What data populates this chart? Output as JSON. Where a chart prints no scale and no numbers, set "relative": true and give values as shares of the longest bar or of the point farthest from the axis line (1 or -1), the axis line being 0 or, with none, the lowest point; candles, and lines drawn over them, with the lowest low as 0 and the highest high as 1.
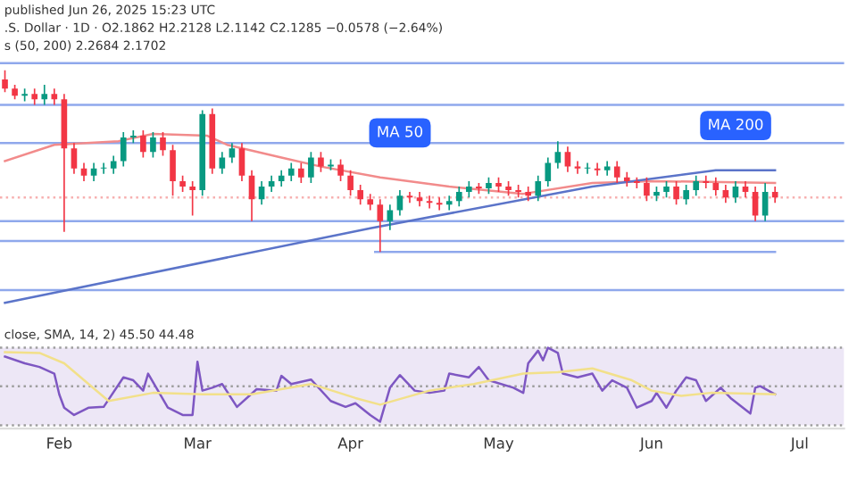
{
  "chart_data": [
    {
      "type": "candlestick",
      "relative": true,
      "tick_labels": false,
      "xlim": [
        "2025-01-20",
        "2025-07-10"
      ],
      "annotations": [
        "published Jun 26, 2025 15:23 UTC",
        ".S. Dollar · 1D · O2.1862 H2.2128 L2.1142 C2.1285 −0.0578 (−2.64%)",
        "s (50, 200) 2.2684 2.1702",
        {
          "text": "MA 50",
          "x": "2025-04-07",
          "y": 0.41
        },
        {
          "text": "MA 200",
          "x": "2025-06-14",
          "y": 0.45
        }
      ],
      "x": [
        "2025-01-21",
        "2025-01-23",
        "2025-01-25",
        "2025-01-27",
        "2025-01-29",
        "2025-01-31",
        "2025-02-02",
        "2025-02-04",
        "2025-02-06",
        "2025-02-08",
        "2025-02-10",
        "2025-02-12",
        "2025-02-14",
        "2025-02-16",
        "2025-02-18",
        "2025-02-20",
        "2025-02-22",
        "2025-02-24",
        "2025-02-26",
        "2025-02-28",
        "2025-03-02",
        "2025-03-04",
        "2025-03-06",
        "2025-03-08",
        "2025-03-10",
        "2025-03-12",
        "2025-03-14",
        "2025-03-16",
        "2025-03-18",
        "2025-03-20",
        "2025-03-22",
        "2025-03-24",
        "2025-03-26",
        "2025-03-28",
        "2025-03-30",
        "2025-04-01",
        "2025-04-03",
        "2025-04-05",
        "2025-04-07",
        "2025-04-09",
        "2025-04-11",
        "2025-04-13",
        "2025-04-15",
        "2025-04-17",
        "2025-04-19",
        "2025-04-21",
        "2025-04-23",
        "2025-04-25",
        "2025-04-27",
        "2025-04-29",
        "2025-05-01",
        "2025-05-03",
        "2025-05-05",
        "2025-05-07",
        "2025-05-09",
        "2025-05-11",
        "2025-05-13",
        "2025-05-15",
        "2025-05-17",
        "2025-05-19",
        "2025-05-21",
        "2025-05-23",
        "2025-05-25",
        "2025-05-27",
        "2025-05-29",
        "2025-05-31",
        "2025-06-02",
        "2025-06-04",
        "2025-06-06",
        "2025-06-08",
        "2025-06-10",
        "2025-06-12",
        "2025-06-14",
        "2025-06-16",
        "2025-06-18",
        "2025-06-20",
        "2025-06-22",
        "2025-06-24",
        "2025-06-26"
      ],
      "ohlc": [
        [
          0.95,
          1.0,
          0.88,
          0.9
        ],
        [
          0.9,
          0.92,
          0.84,
          0.86
        ],
        [
          0.86,
          0.9,
          0.83,
          0.87
        ],
        [
          0.87,
          0.9,
          0.81,
          0.84
        ],
        [
          0.84,
          0.92,
          0.81,
          0.87
        ],
        [
          0.87,
          0.9,
          0.81,
          0.84
        ],
        [
          0.84,
          0.87,
          0.11,
          0.57
        ],
        [
          0.57,
          0.6,
          0.43,
          0.46
        ],
        [
          0.46,
          0.49,
          0.39,
          0.42
        ],
        [
          0.42,
          0.49,
          0.39,
          0.46
        ],
        [
          0.46,
          0.49,
          0.43,
          0.46
        ],
        [
          0.46,
          0.53,
          0.43,
          0.5
        ],
        [
          0.5,
          0.66,
          0.47,
          0.63
        ],
        [
          0.63,
          0.67,
          0.6,
          0.64
        ],
        [
          0.64,
          0.67,
          0.52,
          0.55
        ],
        [
          0.55,
          0.66,
          0.52,
          0.63
        ],
        [
          0.63,
          0.66,
          0.53,
          0.56
        ],
        [
          0.56,
          0.59,
          0.31,
          0.39
        ],
        [
          0.39,
          0.42,
          0.33,
          0.36
        ],
        [
          0.36,
          0.39,
          0.2,
          0.34
        ],
        [
          0.34,
          0.78,
          0.31,
          0.76
        ],
        [
          0.76,
          0.79,
          0.43,
          0.46
        ],
        [
          0.46,
          0.55,
          0.43,
          0.52
        ],
        [
          0.52,
          0.6,
          0.49,
          0.57
        ],
        [
          0.57,
          0.6,
          0.39,
          0.42
        ],
        [
          0.42,
          0.45,
          0.17,
          0.29
        ],
        [
          0.29,
          0.39,
          0.26,
          0.36
        ],
        [
          0.36,
          0.42,
          0.33,
          0.39
        ],
        [
          0.39,
          0.45,
          0.36,
          0.42
        ],
        [
          0.42,
          0.49,
          0.39,
          0.46
        ],
        [
          0.46,
          0.49,
          0.38,
          0.41
        ],
        [
          0.41,
          0.55,
          0.38,
          0.52
        ],
        [
          0.52,
          0.55,
          0.44,
          0.47
        ],
        [
          0.47,
          0.51,
          0.45,
          0.48
        ],
        [
          0.48,
          0.51,
          0.39,
          0.42
        ],
        [
          0.42,
          0.45,
          0.31,
          0.34
        ],
        [
          0.34,
          0.37,
          0.26,
          0.29
        ],
        [
          0.29,
          0.32,
          0.23,
          0.26
        ],
        [
          0.26,
          0.29,
          0.0,
          0.17
        ],
        [
          0.17,
          0.26,
          0.12,
          0.23
        ],
        [
          0.23,
          0.34,
          0.2,
          0.31
        ],
        [
          0.31,
          0.33,
          0.27,
          0.3
        ],
        [
          0.3,
          0.33,
          0.25,
          0.28
        ],
        [
          0.28,
          0.31,
          0.24,
          0.27
        ],
        [
          0.27,
          0.3,
          0.23,
          0.26
        ],
        [
          0.26,
          0.31,
          0.23,
          0.28
        ],
        [
          0.28,
          0.36,
          0.25,
          0.33
        ],
        [
          0.33,
          0.39,
          0.3,
          0.36
        ],
        [
          0.36,
          0.38,
          0.32,
          0.35
        ],
        [
          0.35,
          0.41,
          0.32,
          0.38
        ],
        [
          0.38,
          0.41,
          0.33,
          0.36
        ],
        [
          0.36,
          0.39,
          0.31,
          0.34
        ],
        [
          0.34,
          0.37,
          0.3,
          0.33
        ],
        [
          0.33,
          0.36,
          0.28,
          0.31
        ],
        [
          0.31,
          0.42,
          0.28,
          0.39
        ],
        [
          0.39,
          0.52,
          0.36,
          0.49
        ],
        [
          0.49,
          0.61,
          0.46,
          0.55
        ],
        [
          0.55,
          0.58,
          0.44,
          0.47
        ],
        [
          0.47,
          0.5,
          0.43,
          0.46
        ],
        [
          0.46,
          0.49,
          0.43,
          0.46
        ],
        [
          0.46,
          0.49,
          0.42,
          0.45
        ],
        [
          0.45,
          0.5,
          0.42,
          0.47
        ],
        [
          0.47,
          0.5,
          0.38,
          0.41
        ],
        [
          0.41,
          0.44,
          0.36,
          0.39
        ],
        [
          0.39,
          0.41,
          0.35,
          0.38
        ],
        [
          0.38,
          0.41,
          0.28,
          0.31
        ],
        [
          0.31,
          0.36,
          0.28,
          0.33
        ],
        [
          0.33,
          0.39,
          0.3,
          0.36
        ],
        [
          0.36,
          0.39,
          0.26,
          0.29
        ],
        [
          0.29,
          0.37,
          0.26,
          0.34
        ],
        [
          0.34,
          0.42,
          0.31,
          0.39
        ],
        [
          0.39,
          0.42,
          0.35,
          0.38
        ],
        [
          0.38,
          0.41,
          0.31,
          0.34
        ],
        [
          0.34,
          0.37,
          0.27,
          0.3
        ],
        [
          0.3,
          0.39,
          0.27,
          0.36
        ],
        [
          0.36,
          0.39,
          0.3,
          0.33
        ],
        [
          0.33,
          0.36,
          0.17,
          0.2
        ],
        [
          0.2,
          0.38,
          0.17,
          0.33
        ],
        [
          0.33,
          0.36,
          0.27,
          0.3
        ]
      ],
      "series": [
        {
          "type": "line",
          "color": "#f28b8b",
          "x": [
            "2025-01-21",
            "2025-01-31",
            "2025-02-13",
            "2025-02-20",
            "2025-03-03",
            "2025-03-07",
            "2025-03-18",
            "2025-03-26",
            "2025-04-07",
            "2025-04-21",
            "2025-05-06",
            "2025-05-20",
            "2025-06-01",
            "2025-06-26"
          ],
          "values": [
            0.5,
            0.59,
            0.61,
            0.65,
            0.64,
            0.59,
            0.52,
            0.47,
            0.41,
            0.36,
            0.32,
            0.38,
            0.39,
            0.38
          ]
        },
        {
          "type": "line",
          "color": "#5b74c9",
          "x": [
            "2025-01-21",
            "2025-04-05",
            "2025-05-20",
            "2025-06-14",
            "2025-06-26"
          ],
          "values": [
            -0.28,
            0.13,
            0.36,
            0.45,
            0.45
          ]
        },
        {
          "type": "line",
          "color": "#8fa8ec",
          "x": [
            "2025-04-06",
            "2025-06-26"
          ],
          "values": [
            0.0,
            0.0
          ]
        }
      ],
      "ref_lines": [
        {
          "axis": "y",
          "value": 1.04,
          "color": "#8fa8ec",
          "line_style": "solid"
        },
        {
          "axis": "y",
          "value": 0.81,
          "color": "#8fa8ec",
          "line_style": "solid"
        },
        {
          "axis": "y",
          "value": 0.6,
          "color": "#8fa8ec",
          "line_style": "solid"
        },
        {
          "axis": "y",
          "value": 0.17,
          "color": "#8fa8ec",
          "line_style": "solid"
        },
        {
          "axis": "y",
          "value": 0.06,
          "color": "#8fa8ec",
          "line_style": "solid"
        },
        {
          "axis": "y",
          "value": -0.21,
          "color": "#8fa8ec",
          "line_style": "solid"
        },
        {
          "axis": "y",
          "value": 0.3,
          "color": "#f7b0b0",
          "line_style": "dotted"
        }
      ]
    },
    {
      "type": "line",
      "relative": true,
      "tick_labels": "x",
      "title": "close, SMA, 14, 2) 45.50 44.48",
      "xlim": [
        "2025-01-20",
        "2025-07-10"
      ],
      "xticks": [
        {
          "value": "2025-02-01",
          "label": "Feb"
        },
        {
          "value": "2025-03-01",
          "label": "Mar"
        },
        {
          "value": "2025-04-01",
          "label": "Apr"
        },
        {
          "value": "2025-05-01",
          "label": "May"
        },
        {
          "value": "2025-06-01",
          "label": "Jun"
        },
        {
          "value": "2025-07-01",
          "label": "Jul"
        }
      ],
      "series": [
        {
          "color": "#7e57c2",
          "x": [
            "2025-01-21",
            "2025-01-25",
            "2025-01-28",
            "2025-01-31",
            "2025-02-01",
            "2025-02-02",
            "2025-02-04",
            "2025-02-07",
            "2025-02-10",
            "2025-02-14",
            "2025-02-16",
            "2025-02-18",
            "2025-02-19",
            "2025-02-21",
            "2025-02-23",
            "2025-02-26",
            "2025-02-28",
            "2025-03-01",
            "2025-03-02",
            "2025-03-04",
            "2025-03-06",
            "2025-03-09",
            "2025-03-13",
            "2025-03-17",
            "2025-03-18",
            "2025-03-20",
            "2025-03-24",
            "2025-03-28",
            "2025-03-31",
            "2025-04-02",
            "2025-04-05",
            "2025-04-07",
            "2025-04-09",
            "2025-04-11",
            "2025-04-14",
            "2025-04-17",
            "2025-04-20",
            "2025-04-21",
            "2025-04-25",
            "2025-04-27",
            "2025-04-29",
            "2025-05-04",
            "2025-05-06",
            "2025-05-07",
            "2025-05-09",
            "2025-05-10",
            "2025-05-11",
            "2025-05-13",
            "2025-05-14",
            "2025-05-17",
            "2025-05-20",
            "2025-05-22",
            "2025-05-24",
            "2025-05-27",
            "2025-05-29",
            "2025-06-01",
            "2025-06-02",
            "2025-06-04",
            "2025-06-06",
            "2025-06-08",
            "2025-06-10",
            "2025-06-12",
            "2025-06-15",
            "2025-06-17",
            "2025-06-21",
            "2025-06-22",
            "2025-06-23",
            "2025-06-26"
          ],
          "values": [
            0.88,
            0.79,
            0.74,
            0.65,
            0.37,
            0.19,
            0.09,
            0.19,
            0.2,
            0.6,
            0.56,
            0.42,
            0.65,
            0.42,
            0.19,
            0.09,
            0.09,
            0.81,
            0.42,
            0.46,
            0.51,
            0.2,
            0.44,
            0.42,
            0.62,
            0.51,
            0.57,
            0.28,
            0.2,
            0.25,
            0.09,
            0.0,
            0.46,
            0.63,
            0.42,
            0.39,
            0.42,
            0.65,
            0.6,
            0.74,
            0.56,
            0.46,
            0.39,
            0.79,
            0.96,
            0.83,
            1.0,
            0.93,
            0.65,
            0.6,
            0.65,
            0.42,
            0.56,
            0.46,
            0.19,
            0.28,
            0.39,
            0.19,
            0.42,
            0.6,
            0.56,
            0.28,
            0.46,
            0.32,
            0.11,
            0.46,
            0.48,
            0.37
          ]
        },
        {
          "color": "#f2e08a",
          "x": [
            "2025-01-21",
            "2025-01-28",
            "2025-02-02",
            "2025-02-11",
            "2025-02-20",
            "2025-03-02",
            "2025-03-12",
            "2025-03-24",
            "2025-04-02",
            "2025-04-07",
            "2025-04-17",
            "2025-04-26",
            "2025-05-06",
            "2025-05-13",
            "2025-05-20",
            "2025-05-28",
            "2025-06-01",
            "2025-06-07",
            "2025-06-13",
            "2025-06-26"
          ],
          "values": [
            0.94,
            0.93,
            0.79,
            0.28,
            0.39,
            0.37,
            0.37,
            0.51,
            0.32,
            0.23,
            0.42,
            0.51,
            0.65,
            0.67,
            0.72,
            0.56,
            0.42,
            0.35,
            0.39,
            0.37
          ]
        }
      ],
      "bands": [
        {
          "axis": "y",
          "from": -0.05,
          "to": 1.0,
          "color": "#ede7f6"
        }
      ],
      "ref_lines": [
        {
          "axis": "y",
          "value": 1.0,
          "color": "#9e9e9e",
          "line_style": "dotted"
        },
        {
          "axis": "y",
          "value": 0.48,
          "color": "#9e9e9e",
          "line_style": "dotted"
        },
        {
          "axis": "y",
          "value": -0.05,
          "color": "#9e9e9e",
          "line_style": "dotted"
        }
      ]
    }
  ]
}
